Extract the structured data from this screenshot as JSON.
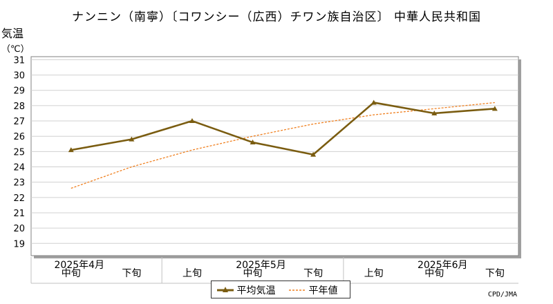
{
  "title": "ナンニン（南寧）〔コワンシー（広西）チワン族自治区〕 中華人民共和国",
  "ylabel": "気温",
  "yunit": "（℃）",
  "credit": "CPD/JMA",
  "colors": {
    "mean": "#7a5c10",
    "normal": "#f08020",
    "grid": "#d0d0d0"
  },
  "chart_data": {
    "type": "line",
    "title": "ナンニン（南寧）〔コワンシー（広西）チワン族自治区〕 中華人民共和国",
    "ylabel": "気温（℃）",
    "ylim": [
      18.2,
      31.2
    ],
    "yticks": [
      19,
      20,
      21,
      22,
      23,
      24,
      25,
      26,
      27,
      28,
      29,
      30,
      31
    ],
    "categories": [
      "中旬",
      "下旬",
      "上旬",
      "中旬",
      "下旬",
      "上旬",
      "中旬",
      "下旬"
    ],
    "month_labels": [
      {
        "label": "2025年4月",
        "index": 0
      },
      {
        "label": "2025年5月",
        "index": 3
      },
      {
        "label": "2025年6月",
        "index": 6
      }
    ],
    "grid": true,
    "series": [
      {
        "name": "平均気温",
        "values": [
          25.1,
          25.8,
          27.0,
          25.6,
          24.8,
          28.2,
          27.5,
          27.8
        ]
      },
      {
        "name": "平年値",
        "values": [
          22.6,
          24.0,
          25.1,
          26.0,
          26.8,
          27.4,
          27.8,
          28.2
        ]
      }
    ],
    "legend": "bottom-center"
  }
}
